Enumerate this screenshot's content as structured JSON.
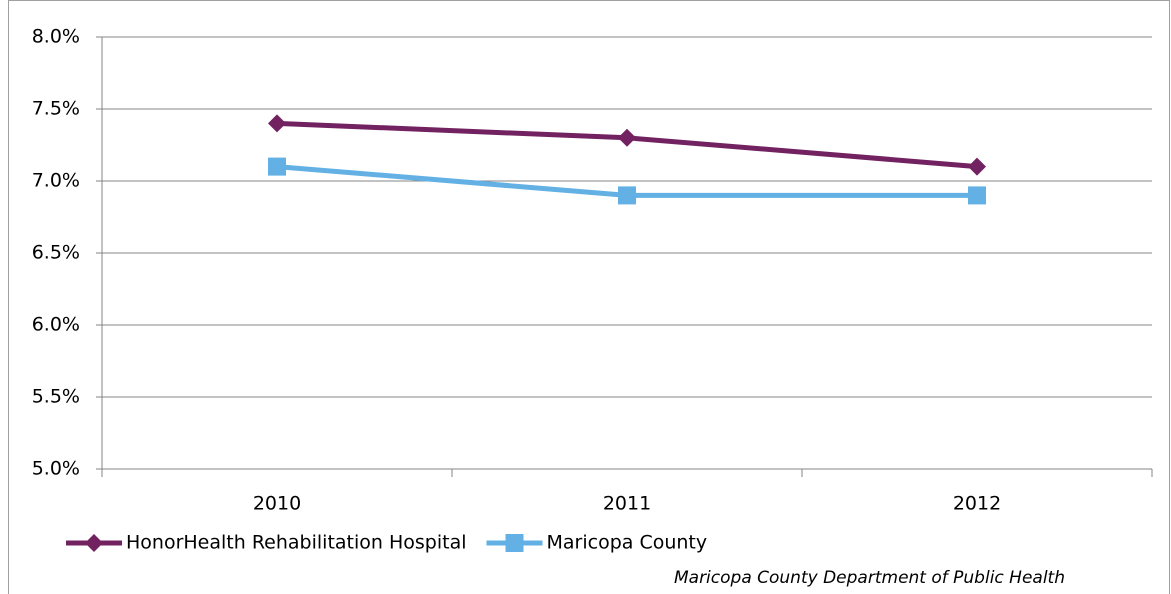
{
  "chart_data": {
    "type": "line",
    "categories": [
      "2010",
      "2011",
      "2012"
    ],
    "series": [
      {
        "name": "HonorHealth Rehabilitation Hospital",
        "color": "#722260",
        "marker": "diamond",
        "values": [
          7.4,
          7.3,
          7.1
        ]
      },
      {
        "name": "Maricopa County",
        "color": "#62b0e4",
        "marker": "square",
        "values": [
          7.1,
          6.9,
          6.9
        ]
      }
    ],
    "ylim": [
      5,
      8
    ],
    "yticks": [
      {
        "value": 5,
        "label": "5.0%"
      },
      {
        "value": 5.5,
        "label": "5.5%"
      },
      {
        "value": 6,
        "label": "6.0%"
      },
      {
        "value": 6.5,
        "label": "6.5%"
      },
      {
        "value": 7,
        "label": "7.0%"
      },
      {
        "value": 7.5,
        "label": "7.5%"
      },
      {
        "value": 8,
        "label": "8.0%"
      }
    ],
    "grid": true,
    "legend": "bottom",
    "annotation": "Maricopa County Department of Public Health"
  }
}
